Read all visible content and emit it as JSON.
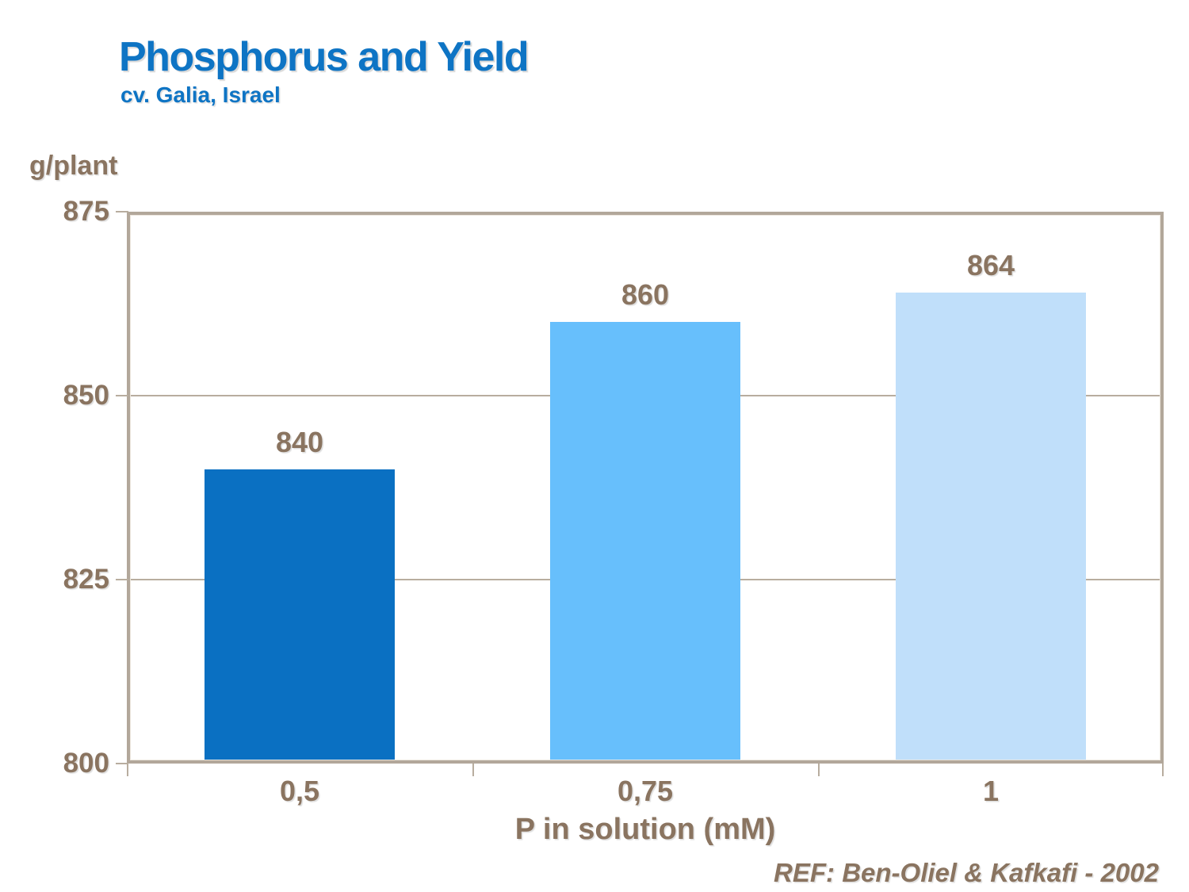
{
  "header": {
    "title": "Phosphorus and Yield",
    "subtitle": "cv. Galia, Israel"
  },
  "footer": {
    "reference": "REF: Ben-Oliel & Kafkafi - 2002"
  },
  "colors": {
    "title_blue": "#0e74c4",
    "text_brown": "#8a7460",
    "frame": "#b2a79a",
    "gridline": "#b8ad9f",
    "bars": [
      "#0a70c2",
      "#67bffc",
      "#c0dffa"
    ]
  },
  "chart_data": {
    "type": "bar",
    "categories": [
      "0,5",
      "0,75",
      "1"
    ],
    "values": [
      840,
      860,
      864
    ],
    "data_labels": [
      "840",
      "860",
      "864"
    ],
    "title": "Phosphorus and Yield",
    "subtitle": "cv. Galia, Israel",
    "xlabel": "P in solution (mM)",
    "ylabel": "g/plant",
    "ylim": [
      800,
      875
    ],
    "yticks": [
      800,
      825,
      850,
      875
    ],
    "grid": true,
    "legend": false
  }
}
